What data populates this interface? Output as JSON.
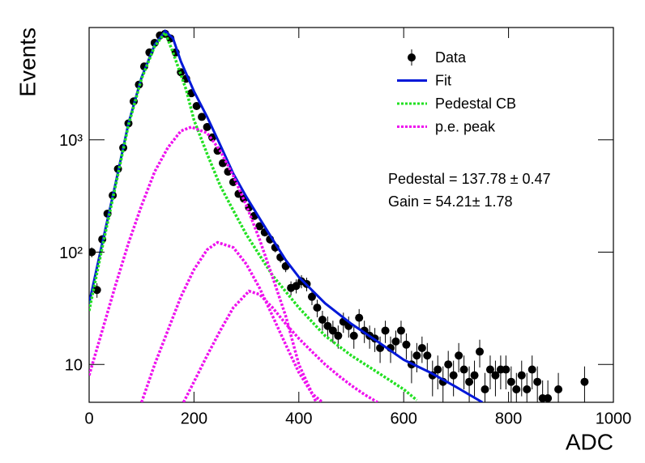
{
  "chart_data": {
    "type": "scatter",
    "xlabel": "ADC",
    "ylabel": "Events",
    "xlim": [
      0,
      1000
    ],
    "ylim": [
      4.6,
      10000
    ],
    "xticks": [
      0,
      200,
      400,
      600,
      800,
      1000
    ],
    "yticks": [
      10,
      {
        "value": 100,
        "label": "10²"
      },
      {
        "value": 1000,
        "label": "10³"
      }
    ],
    "log_y": true,
    "legend": "upper right",
    "annotations": [
      "Pedestal = 137.78 ± 0.47",
      "Gain = 54.21± 1.78"
    ],
    "series": [
      {
        "name": "Data",
        "kind": "errorbar",
        "color": "#000000",
        "x": [
          5,
          15,
          25,
          35,
          45,
          55,
          65,
          75,
          85,
          95,
          105,
          115,
          125,
          135,
          145,
          155,
          165,
          175,
          185,
          195,
          205,
          215,
          225,
          235,
          245,
          255,
          265,
          275,
          285,
          295,
          305,
          315,
          325,
          335,
          345,
          355,
          365,
          375,
          385,
          395,
          405,
          415,
          425,
          435,
          445,
          455,
          465,
          475,
          485,
          495,
          505,
          515,
          525,
          535,
          545,
          555,
          565,
          575,
          585,
          595,
          605,
          615,
          625,
          635,
          645,
          655,
          665,
          675,
          685,
          695,
          705,
          715,
          725,
          735,
          745,
          755,
          765,
          775,
          785,
          795,
          805,
          815,
          825,
          835,
          845,
          855,
          865,
          875,
          895,
          945
        ],
        "values": [
          100,
          46,
          130,
          220,
          320,
          550,
          850,
          1400,
          2200,
          3100,
          4500,
          6000,
          7300,
          8500,
          8800,
          8000,
          6000,
          4000,
          3500,
          2600,
          2000,
          1600,
          1300,
          1050,
          800,
          620,
          520,
          420,
          330,
          300,
          250,
          210,
          170,
          150,
          130,
          110,
          90,
          75,
          48,
          50,
          55,
          52,
          40,
          32,
          25,
          22,
          20,
          18,
          24,
          22,
          18,
          26,
          20,
          18,
          17,
          14,
          20,
          14,
          16,
          20,
          15,
          10,
          12,
          14,
          12,
          8,
          9,
          7,
          10,
          8,
          12,
          9,
          7,
          8,
          13,
          6,
          9,
          8,
          9,
          9,
          7,
          6,
          8,
          6,
          9,
          7,
          5,
          5,
          6,
          7
        ],
        "errors": [
          10,
          6.8,
          11.4,
          14.8,
          17.9,
          23.5,
          29,
          37,
          47,
          56,
          67,
          77,
          85,
          92,
          94,
          89,
          77,
          63,
          59,
          51,
          45,
          40,
          36,
          32,
          28,
          25,
          23,
          20.5,
          18.2,
          17.3,
          15.8,
          14.5,
          13,
          12.2,
          11.4,
          10.5,
          9.5,
          8.7,
          6.9,
          7.1,
          7.4,
          7.2,
          6.3,
          5.7,
          5,
          4.7,
          4.5,
          4.2,
          4.9,
          4.7,
          4.2,
          5.1,
          4.5,
          4.2,
          4.1,
          3.7,
          4.5,
          3.7,
          4,
          4.5,
          3.9,
          3.2,
          3.5,
          3.7,
          3.5,
          2.8,
          3,
          2.6,
          3.2,
          2.8,
          3.5,
          3,
          2.6,
          2.8,
          3.6,
          2.4,
          3,
          2.8,
          3,
          3,
          2.6,
          2.4,
          2.8,
          2.4,
          3,
          2.6,
          2.2,
          2.2,
          2.4,
          2.6
        ]
      },
      {
        "name": "Fit",
        "kind": "line",
        "style": "solid",
        "color": "#0018d8",
        "segments": [
          {
            "x": [
              0,
              25,
              50,
              75,
              100,
              125,
              145,
              160,
              175,
              200,
              225,
              250,
              275,
              300,
              325,
              350,
              375,
              400,
              450,
              500,
              550,
              600,
              650,
              700,
              750
            ],
            "values": [
              35,
              120,
              400,
              1400,
              3600,
              7000,
              9300,
              8000,
              5000,
              2700,
              1600,
              900,
              500,
              310,
              200,
              130,
              85,
              60,
              35,
              23,
              16,
              11,
              8.5,
              6.3,
              4.6
            ]
          }
        ]
      },
      {
        "name": "Pedestal CB",
        "kind": "line",
        "style": "dotted",
        "color": "#22e022",
        "segments": [
          {
            "x": [
              0,
              25,
              50,
              75,
              100,
              125,
              145,
              160,
              185,
              200,
              225,
              250,
              275,
              300,
              350,
              400,
              450,
              500,
              550,
              600,
              625
            ],
            "values": [
              30,
              110,
              380,
              1350,
              3500,
              6800,
              9000,
              6000,
              2800,
              1500,
              750,
              390,
              235,
              143,
              62,
              32,
              18,
              12,
              8.5,
              6,
              4.8
            ]
          }
        ]
      },
      {
        "name": "p.e. peak",
        "kind": "line",
        "style": "dotted",
        "color": "#ee11ee",
        "segments": [
          {
            "x": [
              0,
              25,
              50,
              75,
              100,
              125,
              150,
              175,
              195,
              225,
              250,
              275,
              300,
              325,
              350,
              375,
              400,
              433
            ],
            "values": [
              8,
              20,
              50,
              120,
              260,
              520,
              850,
              1200,
              1300,
              1150,
              800,
              480,
              260,
              130,
              60,
              27,
              10,
              4.6
            ]
          },
          {
            "x": [
              100,
              125,
              150,
              175,
              200,
              225,
              245,
              275,
              300,
              325,
              350,
              375,
              400,
              425,
              445
            ],
            "values": [
              4.6,
              10,
              20,
              40,
              70,
              105,
              122,
              110,
              78,
              48,
              27,
              15,
              8.5,
              5.5,
              4.6
            ]
          },
          {
            "x": [
              180,
              200,
              225,
              250,
              275,
              305,
              325,
              350,
              375,
              400,
              425,
              450,
              475,
              500,
              525,
              550
            ],
            "values": [
              4.6,
              7,
              12,
              20,
              32,
              45,
              42,
              32,
              23,
              17,
              13,
              10,
              8,
              6.5,
              5.4,
              4.6
            ]
          }
        ]
      }
    ]
  }
}
